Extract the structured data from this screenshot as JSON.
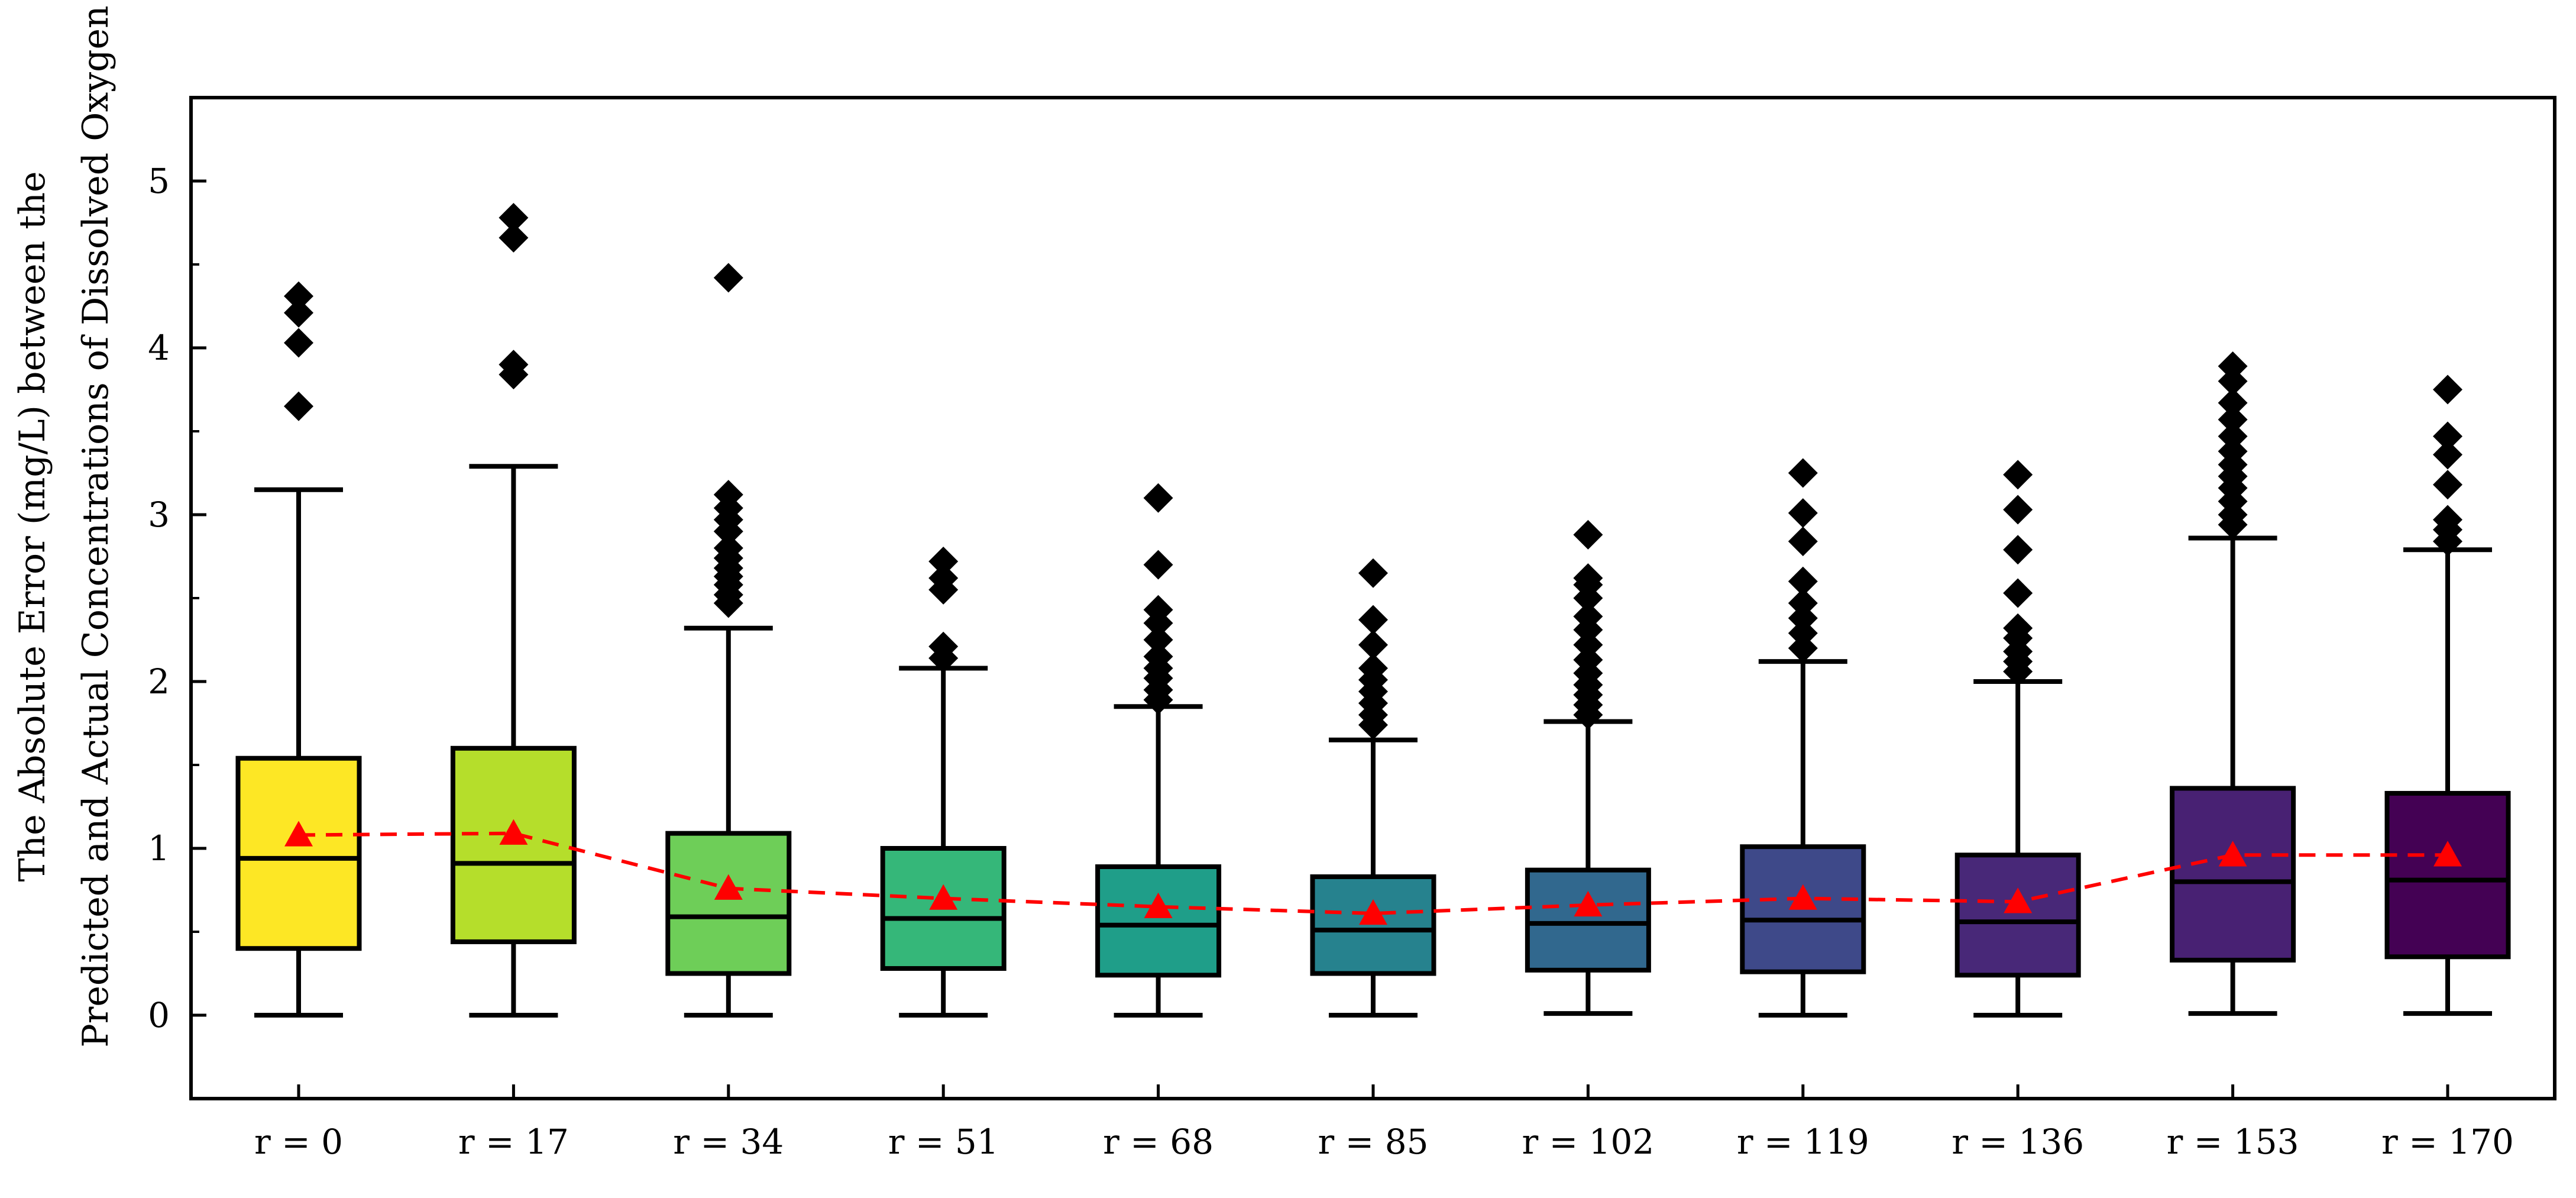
{
  "chart_data": {
    "type": "box",
    "title": "",
    "xlabel": "",
    "ylabel_lines": [
      "The Absolute Error (mg/L) between the",
      "Predicted and Actual Concentrations of Dissolved Oxygen"
    ],
    "ylim": [
      -0.5,
      5.5
    ],
    "yticks": [
      0,
      1,
      2,
      3,
      4,
      5
    ],
    "yticks_minor": [
      0.5,
      1.5,
      2.5,
      3.5,
      4.5
    ],
    "grid": false,
    "mean_line_color": "#ff0000",
    "mean_marker_color": "#ff0000",
    "categories": [
      "r = 0",
      "r = 17",
      "r = 34",
      "r = 51",
      "r = 68",
      "r = 85",
      "r = 102",
      "r = 119",
      "r = 136",
      "r = 153",
      "r = 170"
    ],
    "colors": [
      "#fde725",
      "#b5de2b",
      "#6ece58",
      "#35b779",
      "#1f9e89",
      "#26828e",
      "#31688e",
      "#3e4989",
      "#482878",
      "#482173",
      "#440154"
    ],
    "boxes": [
      {
        "label": "r = 0",
        "whislo": 0.0,
        "q1": 0.4,
        "median": 0.94,
        "q3": 1.54,
        "whishi": 3.15,
        "mean": 1.08,
        "fliers": [
          3.65,
          4.03,
          4.21,
          4.31
        ]
      },
      {
        "label": "r = 17",
        "whislo": 0.0,
        "q1": 0.44,
        "median": 0.91,
        "q3": 1.6,
        "whishi": 3.29,
        "mean": 1.09,
        "fliers": [
          3.84,
          3.9,
          4.66,
          4.78
        ]
      },
      {
        "label": "r = 34",
        "whislo": 0.0,
        "q1": 0.25,
        "median": 0.59,
        "q3": 1.09,
        "whishi": 2.32,
        "mean": 0.76,
        "fliers": [
          2.47,
          2.52,
          2.58,
          2.63,
          2.68,
          2.74,
          2.8,
          2.9,
          2.97,
          3.04,
          3.12,
          4.42
        ]
      },
      {
        "label": "r = 51",
        "whislo": 0.0,
        "q1": 0.28,
        "median": 0.58,
        "q3": 1.0,
        "whishi": 2.08,
        "mean": 0.7,
        "fliers": [
          2.14,
          2.21,
          2.55,
          2.62,
          2.72
        ]
      },
      {
        "label": "r = 68",
        "whislo": 0.0,
        "q1": 0.24,
        "median": 0.54,
        "q3": 0.89,
        "whishi": 1.85,
        "mean": 0.65,
        "fliers": [
          1.89,
          1.95,
          2.02,
          2.08,
          2.15,
          2.25,
          2.35,
          2.43,
          2.7,
          3.1
        ]
      },
      {
        "label": "r = 85",
        "whislo": 0.0,
        "q1": 0.25,
        "median": 0.51,
        "q3": 0.83,
        "whishi": 1.65,
        "mean": 0.61,
        "fliers": [
          1.74,
          1.8,
          1.87,
          1.94,
          2.01,
          2.08,
          2.22,
          2.37,
          2.65
        ]
      },
      {
        "label": "r = 102",
        "whislo": 0.01,
        "q1": 0.27,
        "median": 0.55,
        "q3": 0.87,
        "whishi": 1.76,
        "mean": 0.66,
        "fliers": [
          1.8,
          1.86,
          1.92,
          1.98,
          2.05,
          2.13,
          2.22,
          2.31,
          2.39,
          2.5,
          2.58,
          2.62,
          2.88
        ]
      },
      {
        "label": "r = 119",
        "whislo": 0.0,
        "q1": 0.26,
        "median": 0.57,
        "q3": 1.01,
        "whishi": 2.12,
        "mean": 0.7,
        "fliers": [
          2.2,
          2.29,
          2.38,
          2.47,
          2.6,
          2.84,
          3.01,
          3.25
        ]
      },
      {
        "label": "r = 136",
        "whislo": 0.0,
        "q1": 0.24,
        "median": 0.56,
        "q3": 0.96,
        "whishi": 2.0,
        "mean": 0.68,
        "fliers": [
          2.06,
          2.12,
          2.18,
          2.26,
          2.32,
          2.53,
          2.79,
          3.03,
          3.24
        ]
      },
      {
        "label": "r = 153",
        "whislo": 0.01,
        "q1": 0.33,
        "median": 0.8,
        "q3": 1.36,
        "whishi": 2.86,
        "mean": 0.96,
        "fliers": [
          2.94,
          3.0,
          3.08,
          3.16,
          3.23,
          3.3,
          3.38,
          3.47,
          3.57,
          3.67,
          3.8,
          3.89
        ]
      },
      {
        "label": "r = 170",
        "whislo": 0.01,
        "q1": 0.35,
        "median": 0.81,
        "q3": 1.33,
        "whishi": 2.79,
        "mean": 0.96,
        "fliers": [
          2.84,
          2.91,
          2.97,
          3.18,
          3.36,
          3.47,
          3.75
        ]
      }
    ]
  }
}
